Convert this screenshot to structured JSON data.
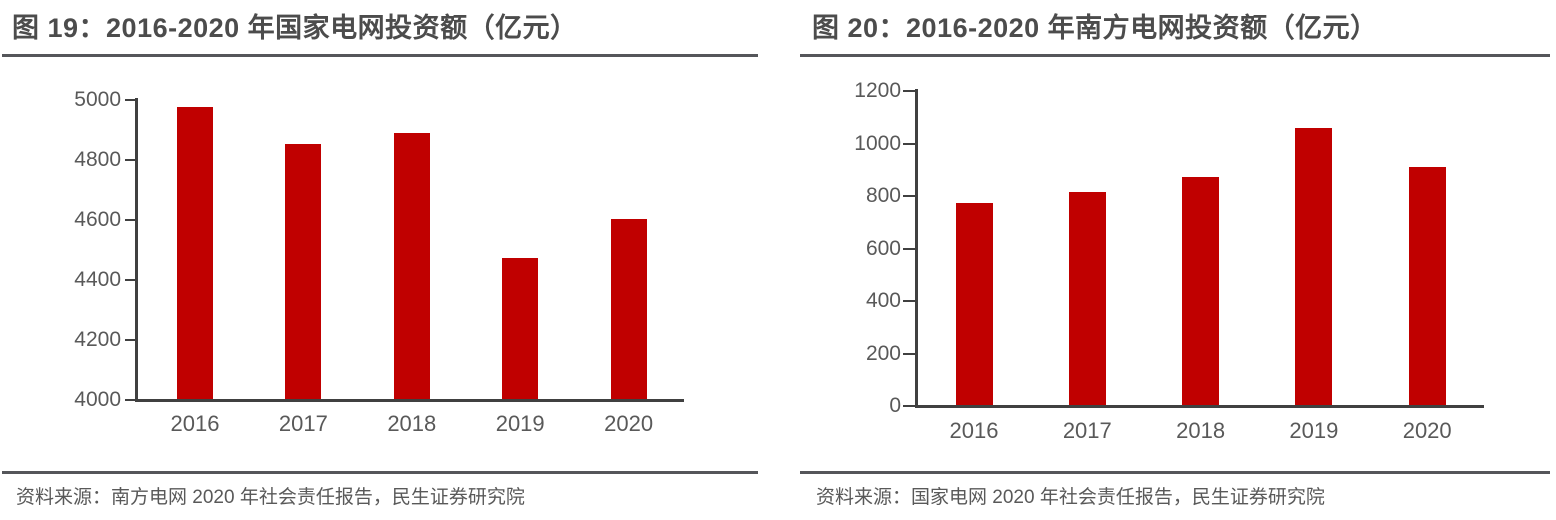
{
  "chart_data": [
    {
      "type": "bar",
      "figure_no": "图 19",
      "title": "图 19：2016-2020 年国家电网投资额（亿元）",
      "categories": [
        "2016",
        "2017",
        "2018",
        "2019",
        "2020"
      ],
      "values": [
        4977,
        4854,
        4889,
        4473,
        4605
      ],
      "ylim": [
        4000,
        5000
      ],
      "yticks": [
        4000,
        4200,
        4400,
        4600,
        4800,
        5000
      ],
      "xlabel": "",
      "ylabel": "",
      "grid": false,
      "legend": "none",
      "bar_color": "#c00000",
      "source": "资料来源：南方电网 2020 年社会责任报告，民生证券研究院"
    },
    {
      "type": "bar",
      "figure_no": "图 20",
      "title": "图 20：2016-2020 年南方电网投资额（亿元）",
      "categories": [
        "2016",
        "2017",
        "2018",
        "2019",
        "2020"
      ],
      "values": [
        772,
        814,
        872,
        1059,
        910
      ],
      "ylim": [
        0,
        1200
      ],
      "yticks": [
        0,
        200,
        400,
        600,
        800,
        1000,
        1200
      ],
      "xlabel": "",
      "ylabel": "",
      "grid": false,
      "legend": "none",
      "bar_color": "#c00000",
      "source": "资料来源：国家电网 2020 年社会责任报告，民生证券研究院"
    }
  ],
  "colors": {
    "bar": "#c00000",
    "axis_line": "#404040",
    "tick_text": "#595959",
    "title_text": "#4c4c4c",
    "rule": "#55565a",
    "source_text": "#595959",
    "background": "#ffffff"
  }
}
